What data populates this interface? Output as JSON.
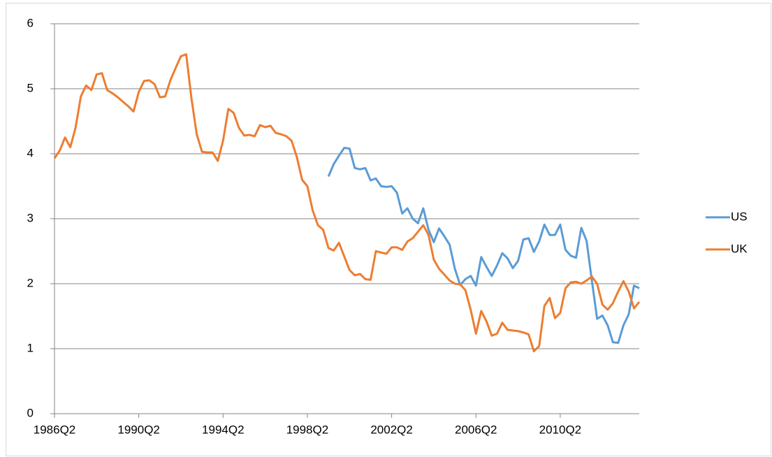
{
  "chart_data": {
    "type": "line",
    "categories": [
      "1986Q2",
      null,
      null,
      null,
      null,
      null,
      null,
      null,
      null,
      null,
      null,
      null,
      null,
      null,
      null,
      null,
      "1990Q2",
      null,
      null,
      null,
      null,
      null,
      null,
      null,
      null,
      null,
      null,
      null,
      null,
      null,
      null,
      null,
      "1994Q2",
      null,
      null,
      null,
      null,
      null,
      null,
      null,
      null,
      null,
      null,
      null,
      null,
      null,
      null,
      null,
      "1998Q2",
      null,
      null,
      null,
      null,
      null,
      null,
      null,
      null,
      null,
      null,
      null,
      null,
      null,
      null,
      null,
      "2002Q2",
      null,
      null,
      null,
      null,
      null,
      null,
      null,
      null,
      null,
      null,
      null,
      null,
      null,
      null,
      null,
      "2006Q2",
      null,
      null,
      null,
      null,
      null,
      null,
      null,
      null,
      null,
      null,
      null,
      null,
      null,
      null,
      null,
      "2010Q2",
      null,
      null,
      null,
      null,
      null,
      null,
      null,
      null,
      null,
      null,
      null,
      null,
      null,
      null,
      null
    ],
    "series": [
      {
        "name": "US",
        "color": "#5b9bd5",
        "values": [
          null,
          null,
          null,
          null,
          null,
          null,
          null,
          null,
          null,
          null,
          null,
          null,
          null,
          null,
          null,
          null,
          null,
          null,
          null,
          null,
          null,
          null,
          null,
          null,
          null,
          null,
          null,
          null,
          null,
          null,
          null,
          null,
          null,
          null,
          null,
          null,
          null,
          null,
          null,
          null,
          null,
          null,
          null,
          null,
          null,
          null,
          null,
          null,
          null,
          null,
          null,
          null,
          3.65,
          3.84,
          3.97,
          4.09,
          4.08,
          3.78,
          3.76,
          3.78,
          3.59,
          3.62,
          3.5,
          3.49,
          3.5,
          3.4,
          3.08,
          3.16,
          3.0,
          2.93,
          3.16,
          2.83,
          2.64,
          2.85,
          2.73,
          2.6,
          2.23,
          1.98,
          2.07,
          2.12,
          1.97,
          2.41,
          2.26,
          2.12,
          2.28,
          2.47,
          2.39,
          2.24,
          2.35,
          2.68,
          2.7,
          2.49,
          2.65,
          2.91,
          2.75,
          2.75,
          2.91,
          2.52,
          2.43,
          2.4,
          2.86,
          2.66,
          2.05,
          1.46,
          1.51,
          1.36,
          1.1,
          1.09,
          1.36,
          1.53,
          1.97,
          1.93
        ]
      },
      {
        "name": "UK",
        "color": "#ed7d31",
        "values": [
          3.93,
          4.05,
          4.25,
          4.1,
          4.4,
          4.88,
          5.05,
          4.98,
          5.22,
          5.24,
          4.98,
          4.93,
          4.87,
          4.8,
          4.73,
          4.65,
          4.95,
          5.12,
          5.13,
          5.07,
          4.87,
          4.88,
          5.13,
          5.32,
          5.5,
          5.53,
          4.85,
          4.3,
          4.03,
          4.02,
          4.02,
          3.89,
          4.2,
          4.69,
          4.63,
          4.4,
          4.28,
          4.29,
          4.27,
          4.44,
          4.41,
          4.43,
          4.32,
          4.3,
          4.27,
          4.2,
          3.95,
          3.6,
          3.5,
          3.13,
          2.9,
          2.83,
          2.55,
          2.51,
          2.63,
          2.42,
          2.21,
          2.13,
          2.15,
          2.07,
          2.06,
          2.5,
          2.48,
          2.46,
          2.56,
          2.56,
          2.52,
          2.65,
          2.7,
          2.8,
          2.9,
          2.75,
          2.37,
          2.23,
          2.14,
          2.05,
          2.0,
          1.99,
          1.9,
          1.6,
          1.23,
          1.58,
          1.42,
          1.2,
          1.23,
          1.4,
          1.29,
          1.28,
          1.27,
          1.25,
          1.22,
          0.96,
          1.04,
          1.66,
          1.78,
          1.47,
          1.55,
          1.93,
          2.02,
          2.03,
          2.0,
          2.05,
          2.11,
          2.0,
          1.68,
          1.6,
          1.7,
          1.88,
          2.04,
          1.88,
          1.62,
          1.72
        ]
      }
    ],
    "ylim": [
      0,
      6
    ],
    "yticks": [
      0,
      1,
      2,
      3,
      4,
      5,
      6
    ],
    "grid": true,
    "legend": "right"
  }
}
